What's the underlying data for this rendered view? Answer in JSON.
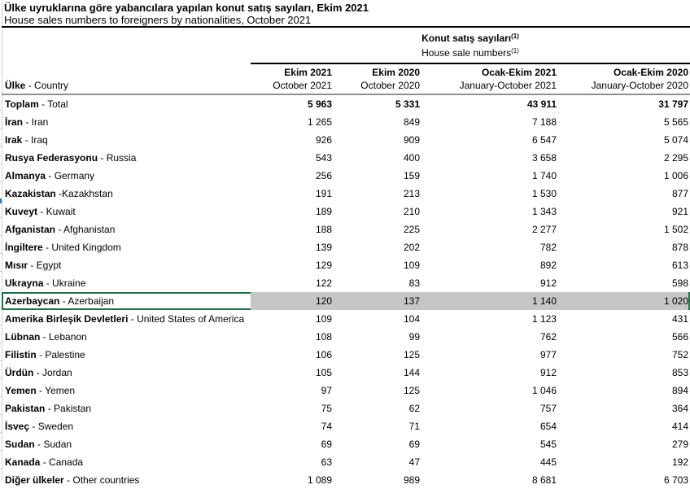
{
  "title": {
    "tr": "Ülke uyruklarına göre yabancılara yapılan konut satış sayıları, Ekim 2021",
    "en": "House sales numbers to foreigners by nationalities, October 2021"
  },
  "table": {
    "group_header": {
      "tr": "Konut satış sayıları",
      "en": "House sale numbers",
      "footnote_marker": "(1)"
    },
    "country_col": {
      "tr": "Ülke",
      "en": " - Country"
    },
    "columns": [
      {
        "tr": "Ekim 2021",
        "en": "October 2021"
      },
      {
        "tr": "Ekim 2020",
        "en": "October 2020"
      },
      {
        "tr": "Ocak-Ekim 2021",
        "en": "January-October 2021"
      },
      {
        "tr": "Ocak-Ekim 2020",
        "en": "January-October 2020"
      }
    ],
    "rows": [
      {
        "tr": "Toplam",
        "en": " - Total",
        "values": [
          "5 963",
          "5 331",
          "43 911",
          "31 797"
        ],
        "bold_values": true
      },
      {
        "tr": "İran",
        "en": " - Iran",
        "values": [
          "1 265",
          "849",
          "7 188",
          "5 565"
        ]
      },
      {
        "tr": "Irak",
        "en": " - Iraq",
        "values": [
          "926",
          "909",
          "6 547",
          "5 074"
        ]
      },
      {
        "tr": "Rusya Federasyonu",
        "en": " - Russia",
        "values": [
          "543",
          "400",
          "3 658",
          "2 295"
        ]
      },
      {
        "tr": "Almanya",
        "en": " - Germany",
        "values": [
          "256",
          "159",
          "1 740",
          "1 006"
        ]
      },
      {
        "tr": "Kazakistan",
        "en": " -Kazakhstan",
        "values": [
          "191",
          "213",
          "1 530",
          "877"
        ]
      },
      {
        "tr": "Kuveyt",
        "en": " - Kuwait",
        "values": [
          "189",
          "210",
          "1 343",
          "921"
        ]
      },
      {
        "tr": "Afganistan",
        "en": " - Afghanistan",
        "values": [
          "188",
          "225",
          "2 277",
          "1 502"
        ]
      },
      {
        "tr": "İngiltere",
        "en": " - United Kingdom",
        "values": [
          "139",
          "202",
          "782",
          "878"
        ]
      },
      {
        "tr": "Mısır",
        "en": " - Egypt",
        "values": [
          "129",
          "109",
          "892",
          "613"
        ]
      },
      {
        "tr": "Ukrayna",
        "en": " - Ukraine",
        "values": [
          "122",
          "83",
          "912",
          "598"
        ]
      },
      {
        "tr": "Azerbaycan",
        "en": " - Azerbaijan",
        "values": [
          "120",
          "137",
          "1 140",
          "1 020"
        ],
        "selected": true
      },
      {
        "tr": "Amerika Birleşik Devletleri",
        "en": " - United States of America",
        "values": [
          "109",
          "104",
          "1 123",
          "431"
        ]
      },
      {
        "tr": "Lübnan",
        "en": " - Lebanon",
        "values": [
          "108",
          "99",
          "762",
          "566"
        ]
      },
      {
        "tr": "Filistin",
        "en": " - Palestine",
        "values": [
          "106",
          "125",
          "977",
          "752"
        ]
      },
      {
        "tr": "Ürdün",
        "en": " - Jordan",
        "values": [
          "105",
          "144",
          "912",
          "853"
        ]
      },
      {
        "tr": "Yemen",
        "en": " - Yemen",
        "values": [
          "97",
          "125",
          "1 046",
          "894"
        ]
      },
      {
        "tr": "Pakistan",
        "en": " - Pakistan",
        "values": [
          "75",
          "62",
          "757",
          "364"
        ]
      },
      {
        "tr": "İsveç",
        "en": " - Sweden",
        "values": [
          "74",
          "71",
          "654",
          "414"
        ]
      },
      {
        "tr": "Sudan",
        "en": " - Sudan",
        "values": [
          "69",
          "69",
          "545",
          "279"
        ]
      },
      {
        "tr": "Kanada",
        "en": " - Canada",
        "values": [
          "63",
          "47",
          "445",
          "192"
        ]
      },
      {
        "tr": "Diğer ülkeler",
        "en": " - Other countries",
        "values": [
          "1 089",
          "989",
          "8 681",
          "6 703"
        ]
      }
    ]
  },
  "colors": {
    "selection_border": "#1F7145",
    "selection_fill": "#C6C6C6",
    "rule_black": "#000000",
    "rule_gray": "#909090",
    "gridline": "#D0D0D0",
    "marker_blue": "#2E75B6"
  }
}
